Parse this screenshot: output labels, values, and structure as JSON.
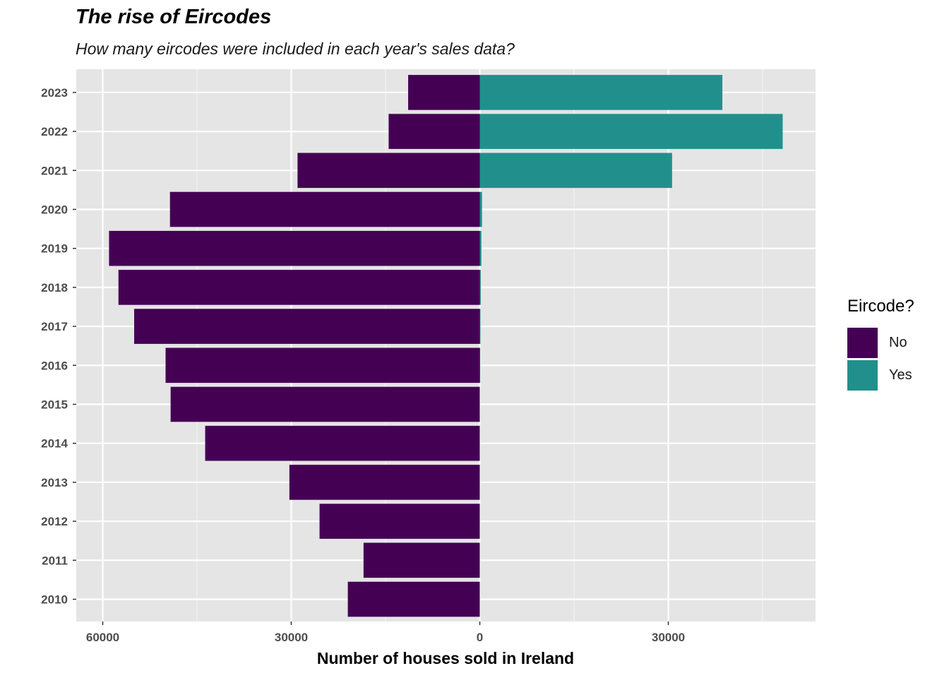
{
  "chart_data": {
    "type": "bar",
    "orientation": "horizontal-diverging",
    "title": "The rise of Eircodes",
    "subtitle": "How many eircodes were included in each year's sales data?",
    "xlabel": "Number of houses sold in Ireland",
    "ylabel": "",
    "xlim": [
      -60000,
      53500
    ],
    "x_ticks": [
      {
        "value": -60000,
        "label": "60000"
      },
      {
        "value": -30000,
        "label": "30000"
      },
      {
        "value": 0,
        "label": "0"
      },
      {
        "value": 30000,
        "label": "30000"
      }
    ],
    "grid": true,
    "legend_position": "right",
    "legend_title": "Eircode?",
    "categories": [
      "2010",
      "2011",
      "2012",
      "2013",
      "2014",
      "2015",
      "2016",
      "2017",
      "2018",
      "2019",
      "2020",
      "2021",
      "2022",
      "2023"
    ],
    "series": [
      {
        "name": "No",
        "color": "#440154",
        "direction": "left",
        "values": [
          21000,
          18500,
          25500,
          30300,
          43700,
          49200,
          50000,
          55000,
          57500,
          59000,
          49300,
          29000,
          14500,
          11400
        ]
      },
      {
        "name": "Yes",
        "color": "#21908C",
        "direction": "right",
        "values": [
          0,
          0,
          0,
          0,
          0,
          0,
          50,
          100,
          150,
          250,
          350,
          30600,
          48200,
          38600
        ]
      }
    ]
  }
}
